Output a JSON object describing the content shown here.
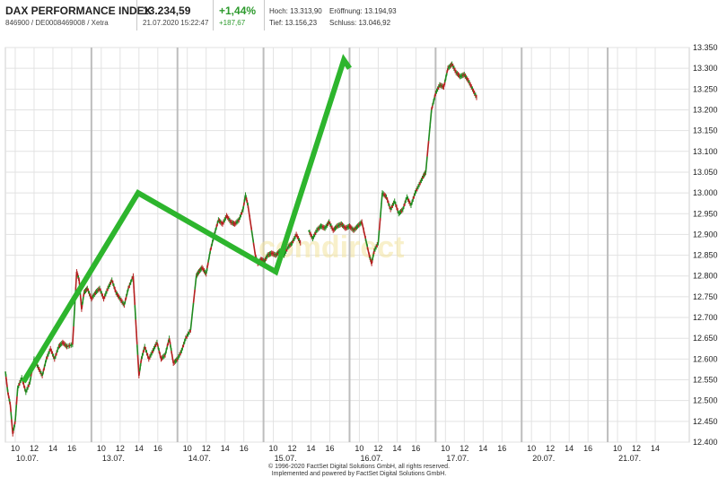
{
  "header": {
    "name": "DAX PERFORMANCE INDEX",
    "wkn": "846900 / DE0008469008 / Xetra",
    "price": "13.234,59",
    "datetime": "21.07.2020 15:22:47",
    "change_pct": "+1,44%",
    "change_abs": "+187,67",
    "high": "Hoch: 13.313,90",
    "low": "Tief: 13.156,23",
    "open": "Eröffnung: 13.194,93",
    "close": "Schluss: 13.046,92"
  },
  "footer": {
    "line1": "© 1996-2020 FactSet Digital Solutions GmbH, all rights reserved.",
    "line2": "Implemented and powered by FactSet Digital Solutions GmbH."
  },
  "watermark": "comdirect",
  "colors": {
    "trend": "#2db52d",
    "up": "#1f8a1f",
    "down": "#b52020",
    "grid": "#e2e2e2",
    "divider": "#bdbdbd"
  },
  "chart_data": {
    "type": "line",
    "ylim": [
      12400,
      13350
    ],
    "y_ticks": [
      "12.400",
      "12.450",
      "12.500",
      "12.550",
      "12.600",
      "12.650",
      "12.700",
      "12.750",
      "12.800",
      "12.850",
      "12.900",
      "12.950",
      "13.000",
      "13.050",
      "13.100",
      "13.150",
      "13.200",
      "13.250",
      "13.300",
      "13.350"
    ],
    "y_tick_values": [
      12400,
      12450,
      12500,
      12550,
      12600,
      12650,
      12700,
      12750,
      12800,
      12850,
      12900,
      12950,
      13000,
      13050,
      13100,
      13150,
      13200,
      13250,
      13300,
      13350
    ],
    "days": [
      {
        "date": "10.07.",
        "hours": [
          "10",
          "12",
          "14",
          "16"
        ]
      },
      {
        "date": "13.07.",
        "hours": [
          "10",
          "12",
          "14",
          "16"
        ]
      },
      {
        "date": "14.07.",
        "hours": [
          "10",
          "12",
          "14",
          "16"
        ]
      },
      {
        "date": "15.07.",
        "hours": [
          "10",
          "12",
          "14",
          "16"
        ]
      },
      {
        "date": "16.07.",
        "hours": [
          "10",
          "12",
          "14",
          "16"
        ]
      },
      {
        "date": "17.07.",
        "hours": [
          "10",
          "12",
          "14",
          "16"
        ]
      },
      {
        "date": "20.07.",
        "hours": [
          "10",
          "12",
          "14",
          "16"
        ]
      },
      {
        "date": "21.07.",
        "hours": [
          "10",
          "12",
          "14"
        ]
      }
    ],
    "price_path": [
      [
        0.0,
        12570
      ],
      [
        0.3,
        12520
      ],
      [
        0.6,
        12490
      ],
      [
        0.9,
        12420
      ],
      [
        1.2,
        12450
      ],
      [
        1.5,
        12530
      ],
      [
        2.0,
        12555
      ],
      [
        2.5,
        12520
      ],
      [
        3.0,
        12545
      ],
      [
        3.5,
        12600
      ],
      [
        4.0,
        12580
      ],
      [
        4.5,
        12560
      ],
      [
        5.0,
        12600
      ],
      [
        5.5,
        12625
      ],
      [
        6.0,
        12600
      ],
      [
        6.5,
        12630
      ],
      [
        7.0,
        12640
      ],
      [
        7.5,
        12630
      ],
      [
        8.2,
        12635
      ],
      [
        8.7,
        12810
      ],
      [
        9.0,
        12790
      ],
      [
        9.3,
        12720
      ],
      [
        9.6,
        12760
      ],
      [
        10.0,
        12770
      ],
      [
        10.5,
        12745
      ],
      [
        11.0,
        12760
      ],
      [
        11.5,
        12770
      ],
      [
        12.0,
        12745
      ],
      [
        12.5,
        12770
      ],
      [
        13.0,
        12790
      ],
      [
        13.5,
        12760
      ],
      [
        14.0,
        12745
      ],
      [
        14.5,
        12730
      ],
      [
        15.0,
        12770
      ],
      [
        15.6,
        12800
      ],
      [
        16.0,
        12660
      ],
      [
        16.3,
        12560
      ],
      [
        16.6,
        12600
      ],
      [
        17.0,
        12630
      ],
      [
        17.5,
        12600
      ],
      [
        18.0,
        12620
      ],
      [
        18.5,
        12640
      ],
      [
        19.0,
        12600
      ],
      [
        19.5,
        12610
      ],
      [
        20.0,
        12650
      ],
      [
        20.5,
        12590
      ],
      [
        21.0,
        12600
      ],
      [
        21.5,
        12620
      ],
      [
        22.0,
        12650
      ],
      [
        22.6,
        12670
      ],
      [
        23.3,
        12800
      ],
      [
        23.6,
        12810
      ],
      [
        24.0,
        12820
      ],
      [
        24.5,
        12805
      ],
      [
        25.0,
        12860
      ],
      [
        25.5,
        12900
      ],
      [
        26.0,
        12935
      ],
      [
        26.5,
        12925
      ],
      [
        27.0,
        12945
      ],
      [
        27.5,
        12930
      ],
      [
        28.0,
        12925
      ],
      [
        28.5,
        12935
      ],
      [
        29.0,
        12960
      ],
      [
        29.3,
        12995
      ],
      [
        29.6,
        12970
      ],
      [
        30.5,
        12850
      ],
      [
        30.8,
        12830
      ],
      [
        31.2,
        12840
      ],
      [
        31.6,
        12835
      ],
      [
        32.0,
        12850
      ],
      [
        32.5,
        12855
      ],
      [
        33.0,
        12850
      ],
      [
        33.5,
        12860
      ],
      [
        34.0,
        12850
      ],
      [
        34.5,
        12870
      ],
      [
        35.0,
        12880
      ],
      [
        35.5,
        12900
      ],
      [
        36.0,
        12880
      ],
      [
        37.0,
        12910
      ],
      [
        37.5,
        12890
      ],
      [
        38.0,
        12910
      ],
      [
        38.5,
        12920
      ],
      [
        39.0,
        12915
      ],
      [
        39.5,
        12930
      ],
      [
        40.0,
        12910
      ],
      [
        40.5,
        12920
      ],
      [
        41.0,
        12925
      ],
      [
        41.5,
        12915
      ],
      [
        42.0,
        12920
      ],
      [
        42.5,
        12910
      ],
      [
        43.0,
        12920
      ],
      [
        43.5,
        12930
      ],
      [
        44.4,
        12850
      ],
      [
        44.7,
        12830
      ],
      [
        45.0,
        12860
      ],
      [
        45.5,
        12880
      ],
      [
        46.0,
        13000
      ],
      [
        46.5,
        12990
      ],
      [
        47.0,
        12960
      ],
      [
        47.5,
        12980
      ],
      [
        48.0,
        12950
      ],
      [
        48.5,
        12960
      ],
      [
        49.0,
        12990
      ],
      [
        49.5,
        12970
      ],
      [
        50.0,
        13000
      ],
      [
        50.5,
        13020
      ],
      [
        51.0,
        13040
      ],
      [
        51.3,
        13050
      ],
      [
        52.0,
        13200
      ],
      [
        52.5,
        13240
      ],
      [
        53.0,
        13260
      ],
      [
        53.5,
        13255
      ],
      [
        54.0,
        13300
      ],
      [
        54.5,
        13310
      ],
      [
        55.0,
        13290
      ],
      [
        55.5,
        13280
      ],
      [
        56.0,
        13285
      ],
      [
        56.5,
        13270
      ],
      [
        57.0,
        13250
      ],
      [
        57.5,
        13230
      ]
    ],
    "trend_lines": [
      [
        2.2,
        12545
      ],
      [
        16.2,
        13000
      ],
      [
        33.0,
        12810
      ],
      [
        41.3,
        13320
      ],
      [
        42.0,
        13300
      ]
    ]
  }
}
